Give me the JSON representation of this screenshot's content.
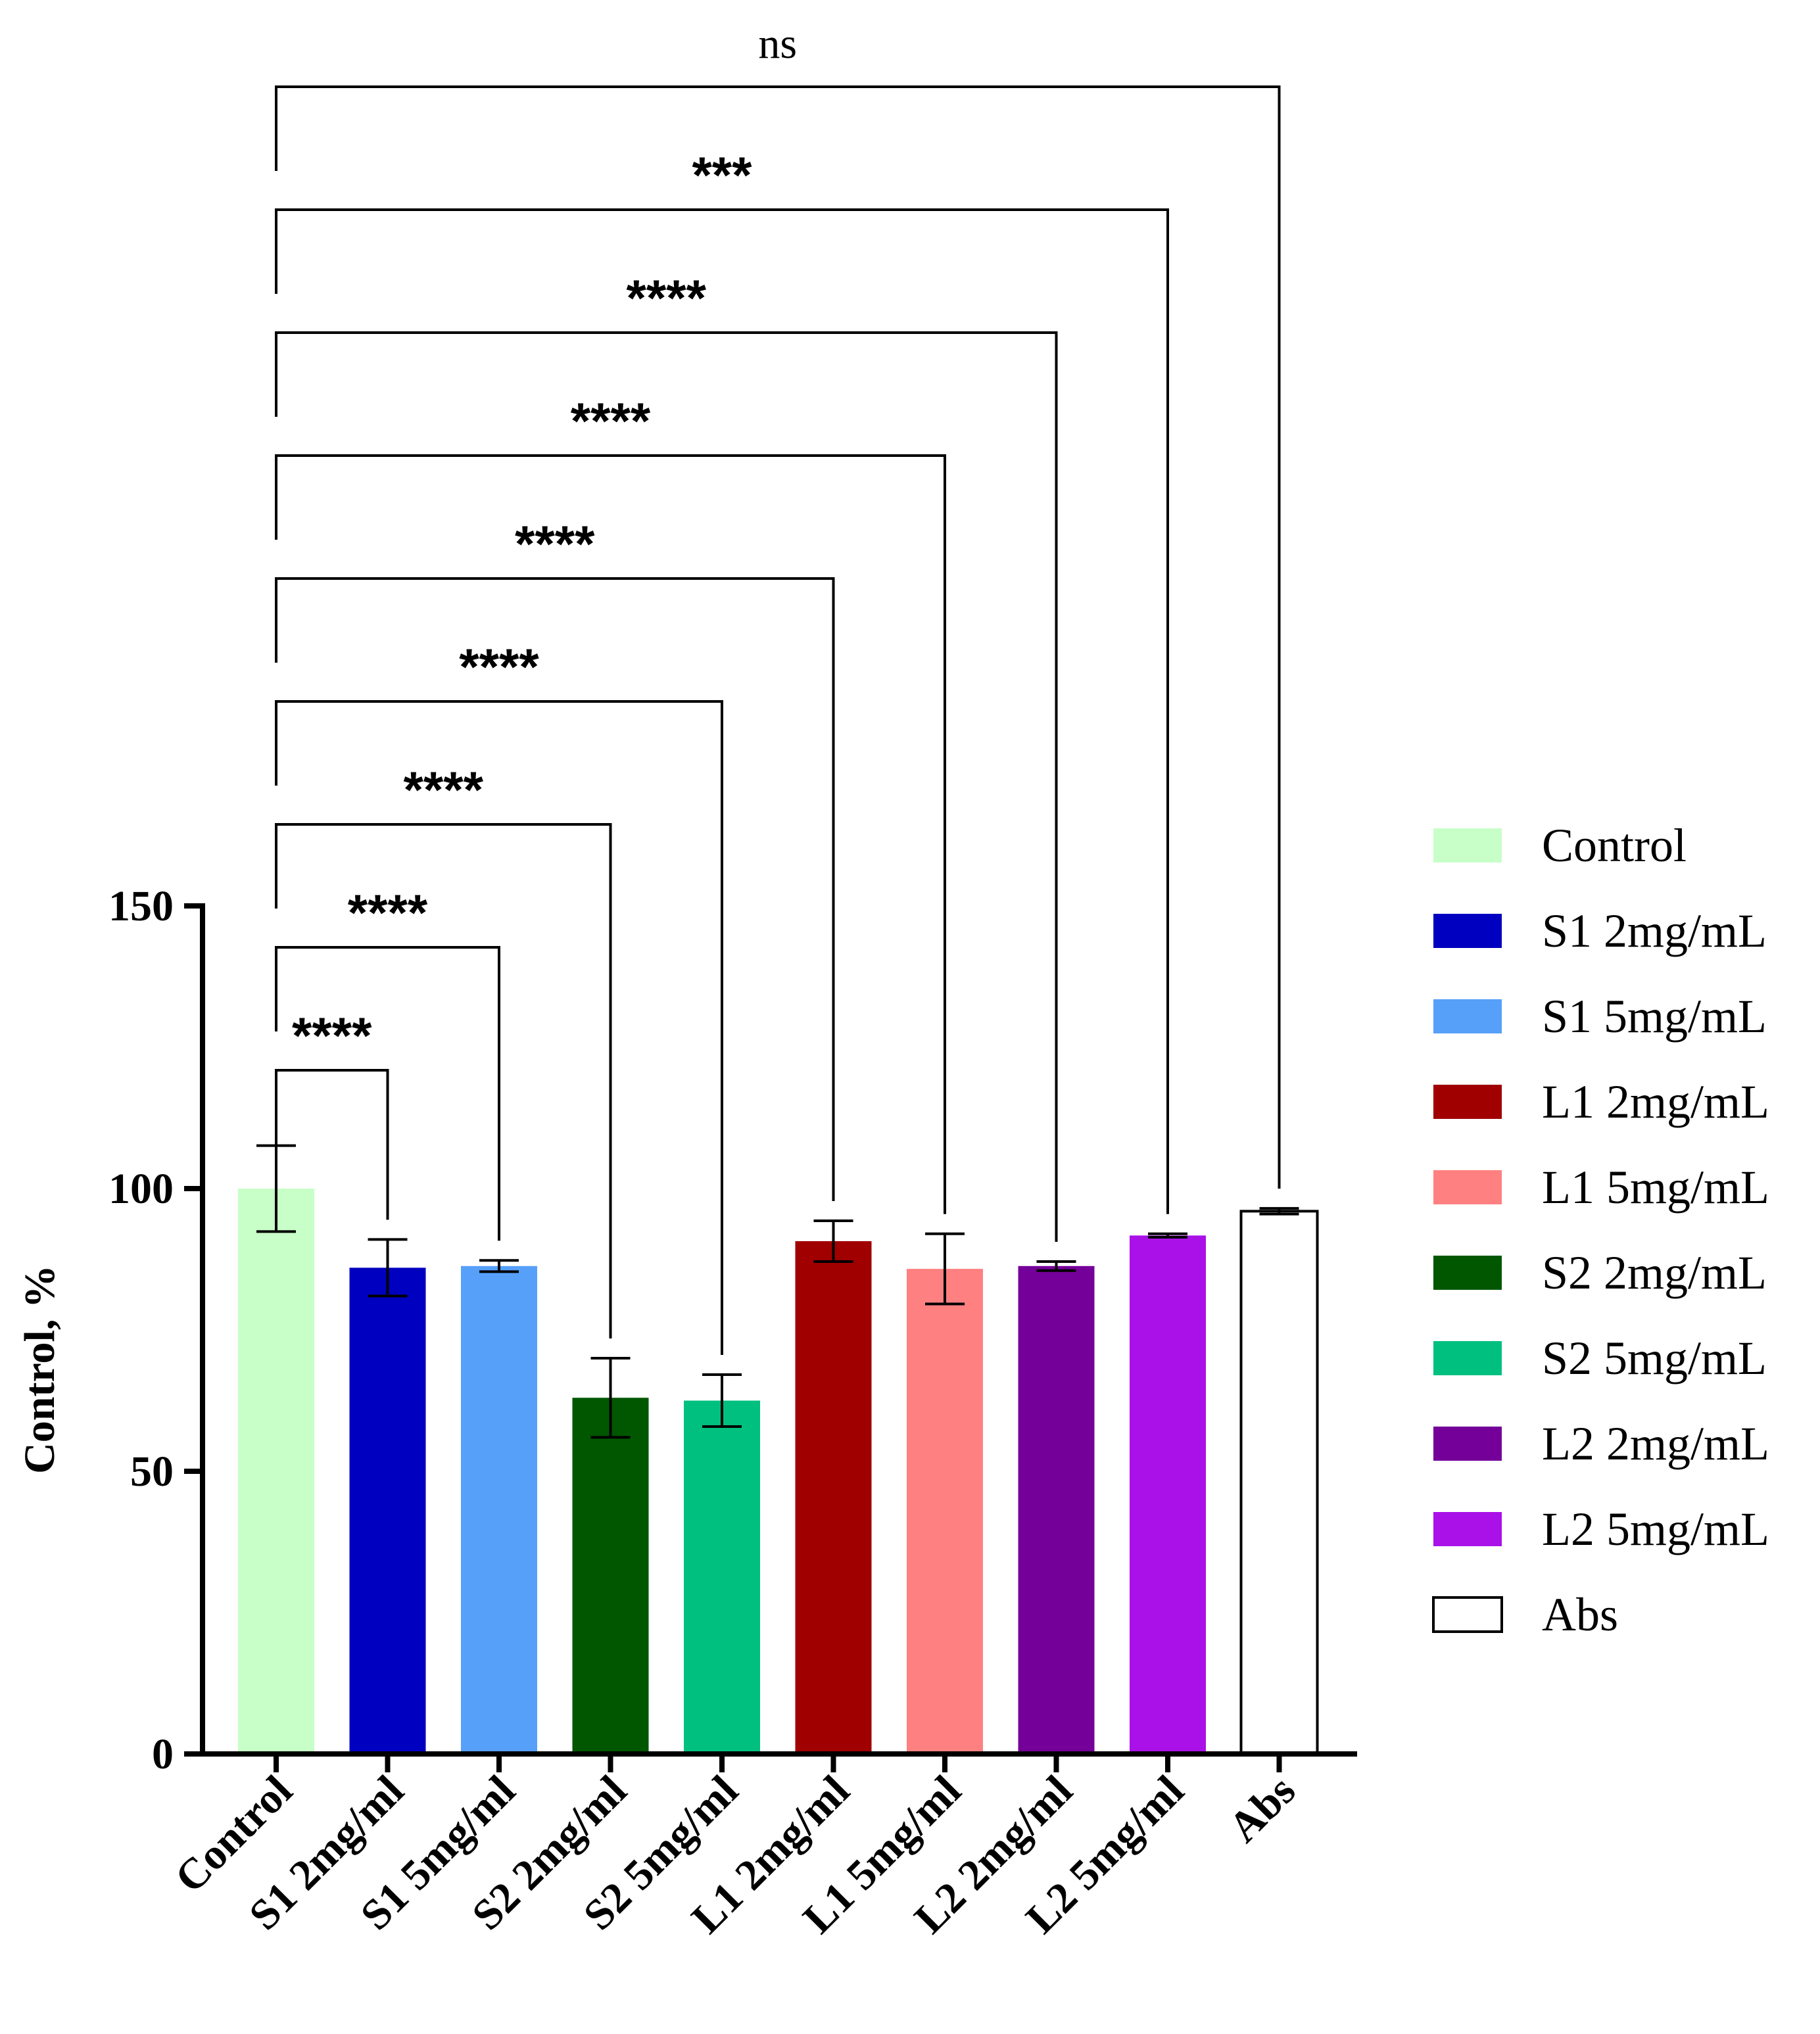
{
  "chart_data": {
    "type": "bar",
    "title": "",
    "xlabel": "",
    "ylabel": "Control, %",
    "ylim": [
      0,
      150
    ],
    "yticks": [
      0,
      50,
      100,
      150
    ],
    "yticks_labels": [
      "0",
      "50",
      "100",
      "150"
    ],
    "grid": false,
    "legend_position": "right",
    "categories": [
      "Control",
      "S1 2mg/ml",
      "S1 5mg/ml",
      "S2 2mg/ml",
      "S2 5mg/ml",
      "L1 2mg/ml",
      "L1 5mg/ml",
      "L2 2mg/ml",
      "L2 5mg/ml",
      "Abs"
    ],
    "values": [
      100,
      86,
      86.3,
      63,
      62.5,
      90.7,
      85.8,
      86.3,
      91.7,
      96
    ],
    "errors": [
      7.6,
      5,
      1,
      7,
      4.6,
      3.6,
      6.2,
      0.8,
      0.3,
      0.5
    ],
    "colors": [
      "#c8ffc8",
      "#0000c0",
      "#57a0fa",
      "#005700",
      "#00c080",
      "#a00000",
      "#ff8080",
      "#750099",
      "#aa10e8",
      "#ffffff"
    ],
    "legend": [
      {
        "label": "Control",
        "color": "#c8ffc8"
      },
      {
        "label": "S1 2mg/mL",
        "color": "#0000c0"
      },
      {
        "label": "S1 5mg/mL",
        "color": "#57a0fa"
      },
      {
        "label": "L1 2mg/mL",
        "color": "#a00000"
      },
      {
        "label": "L1 5mg/mL",
        "color": "#ff8080"
      },
      {
        "label": "S2 2mg/mL",
        "color": "#005700"
      },
      {
        "label": "S2 5mg/mL",
        "color": "#00c080"
      },
      {
        "label": "L2 2mg/mL",
        "color": "#750099"
      },
      {
        "label": "L2 5mg/mL",
        "color": "#aa10e8"
      },
      {
        "label": "Abs",
        "color": "#ffffff"
      }
    ],
    "comparisons": [
      {
        "from": 0,
        "to": 1,
        "label": "****"
      },
      {
        "from": 0,
        "to": 2,
        "label": "****"
      },
      {
        "from": 0,
        "to": 3,
        "label": "****"
      },
      {
        "from": 0,
        "to": 4,
        "label": "****"
      },
      {
        "from": 0,
        "to": 5,
        "label": "****"
      },
      {
        "from": 0,
        "to": 6,
        "label": "****"
      },
      {
        "from": 0,
        "to": 7,
        "label": "****"
      },
      {
        "from": 0,
        "to": 8,
        "label": "***"
      },
      {
        "from": 0,
        "to": 9,
        "label": "ns"
      }
    ]
  }
}
